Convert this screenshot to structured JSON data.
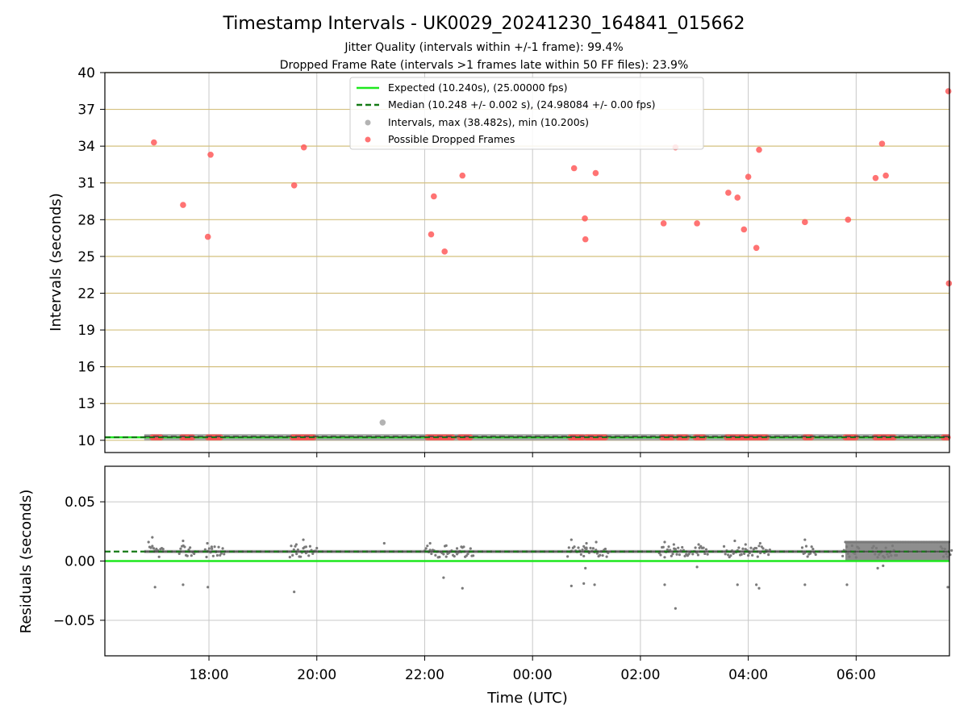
{
  "chart_data": {
    "type": "scatter",
    "title": "Timestamp Intervals - UK0029_20241230_164841_015662",
    "subtitle_lines": [
      "Jitter Quality (intervals within +/-1 frame): 99.4%",
      "Dropped Frame Rate (intervals >1 frames late within 50 FF files): 23.9%"
    ],
    "xlabel": "Time (UTC)",
    "x_ticks": [
      "18:00",
      "20:00",
      "22:00",
      "00:00",
      "02:00",
      "04:00",
      "06:00"
    ],
    "x_tick_hours": [
      18,
      20,
      22,
      24,
      26,
      28,
      30
    ],
    "xlim_hours": [
      16.07,
      31.73
    ],
    "panels": {
      "intervals": {
        "ylabel": "Intervals (seconds)",
        "ylim": [
          9,
          40
        ],
        "yticks": [
          10,
          13,
          16,
          19,
          22,
          25,
          28,
          31,
          34,
          37,
          40
        ],
        "grid_h_color": "#d4c07f",
        "expected": 10.24,
        "median": 10.248,
        "legend": {
          "expected": "Expected (10.240s), (25.00000 fps)",
          "median": "Median (10.248 +/- 0.002 s), (24.98084 +/- 0.00 fps)",
          "intervals": "Intervals, max (38.482s), min (10.200s)",
          "dropped": "Possible Dropped Frames"
        },
        "grey_band": [
          16.8,
          31.73
        ],
        "grey_outliers": [
          [
            21.22,
            11.45
          ]
        ],
        "dropped_points": [
          [
            16.98,
            34.3
          ],
          [
            17.52,
            29.2
          ],
          [
            17.98,
            26.6
          ],
          [
            18.03,
            33.3
          ],
          [
            19.58,
            30.8
          ],
          [
            19.76,
            33.9
          ],
          [
            22.12,
            26.8
          ],
          [
            22.17,
            29.9
          ],
          [
            22.37,
            25.4
          ],
          [
            22.7,
            31.6
          ],
          [
            24.77,
            32.2
          ],
          [
            24.97,
            28.1
          ],
          [
            24.98,
            26.4
          ],
          [
            25.17,
            31.8
          ],
          [
            26.43,
            27.7
          ],
          [
            26.65,
            33.9
          ],
          [
            27.05,
            27.7
          ],
          [
            27.63,
            30.2
          ],
          [
            27.8,
            29.8
          ],
          [
            27.92,
            27.2
          ],
          [
            28.0,
            31.5
          ],
          [
            28.15,
            25.7
          ],
          [
            28.2,
            33.7
          ],
          [
            29.05,
            27.8
          ],
          [
            29.85,
            28.0
          ],
          [
            30.36,
            31.4
          ],
          [
            30.48,
            34.2
          ],
          [
            30.55,
            31.6
          ],
          [
            31.71,
            38.48
          ],
          [
            31.72,
            22.8
          ]
        ],
        "dropped_baseline_clusters": [
          [
            16.95,
            17.12
          ],
          [
            17.5,
            17.7
          ],
          [
            17.98,
            18.25
          ],
          [
            19.55,
            19.95
          ],
          [
            22.05,
            22.55
          ],
          [
            22.65,
            22.85
          ],
          [
            24.7,
            24.95
          ],
          [
            25.0,
            25.35
          ],
          [
            26.4,
            26.62
          ],
          [
            26.7,
            26.88
          ],
          [
            27.02,
            27.2
          ],
          [
            27.6,
            28.35
          ],
          [
            29.05,
            29.2
          ],
          [
            29.8,
            30.0
          ],
          [
            30.35,
            30.7
          ],
          [
            31.62,
            31.73
          ]
        ]
      },
      "residuals": {
        "ylabel": "Residuals (seconds)",
        "ylim": [
          -0.08,
          0.08
        ],
        "yticks": [
          0.05,
          0.0,
          -0.05
        ],
        "ytick_labels": [
          "0.05",
          "0.00",
          "−0.05"
        ],
        "expected": 0.0,
        "median": 0.008,
        "dense_range": [
          29.8,
          31.73
        ],
        "outliers": [
          [
            16.88,
            0.016
          ],
          [
            16.95,
            0.02
          ],
          [
            17.0,
            -0.022
          ],
          [
            17.52,
            -0.02
          ],
          [
            17.52,
            0.017
          ],
          [
            17.98,
            -0.022
          ],
          [
            17.97,
            0.015
          ],
          [
            18.05,
            0.012
          ],
          [
            19.58,
            -0.026
          ],
          [
            19.62,
            0.014
          ],
          [
            19.75,
            0.018
          ],
          [
            19.8,
            0.012
          ],
          [
            21.25,
            0.015
          ],
          [
            22.1,
            0.015
          ],
          [
            22.35,
            -0.014
          ],
          [
            22.4,
            0.013
          ],
          [
            22.7,
            -0.023
          ],
          [
            22.68,
            0.012
          ],
          [
            24.72,
            0.018
          ],
          [
            24.72,
            -0.021
          ],
          [
            24.95,
            -0.019
          ],
          [
            24.98,
            -0.006
          ],
          [
            25.0,
            0.015
          ],
          [
            25.15,
            -0.02
          ],
          [
            25.18,
            0.016
          ],
          [
            26.45,
            -0.02
          ],
          [
            26.45,
            0.016
          ],
          [
            26.65,
            -0.04
          ],
          [
            26.62,
            0.014
          ],
          [
            27.08,
            0.014
          ],
          [
            27.05,
            -0.005
          ],
          [
            27.75,
            0.017
          ],
          [
            27.8,
            -0.02
          ],
          [
            27.95,
            0.014
          ],
          [
            28.15,
            -0.02
          ],
          [
            28.2,
            -0.023
          ],
          [
            28.22,
            0.015
          ],
          [
            29.05,
            0.018
          ],
          [
            29.05,
            -0.02
          ],
          [
            29.83,
            -0.02
          ],
          [
            30.4,
            -0.006
          ],
          [
            30.5,
            -0.004
          ],
          [
            31.7,
            -0.022
          ]
        ]
      }
    },
    "colors": {
      "expected": "#1ee81e",
      "median": "#157a15",
      "dropped": "#ff5050",
      "intervals": "#9a9a9a",
      "residual_points": "#7a7a7a",
      "grid": "#c8c8c8"
    }
  }
}
